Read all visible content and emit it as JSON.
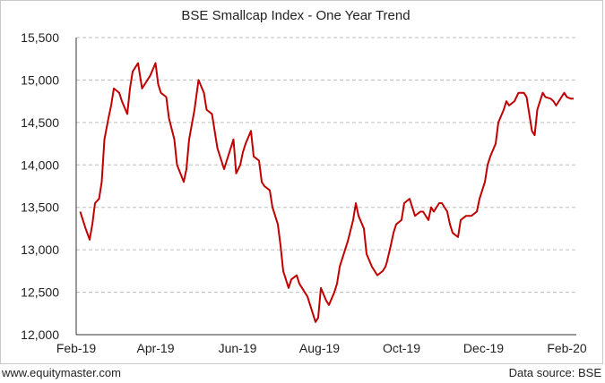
{
  "chart_data": {
    "type": "line",
    "title": "BSE Smallcap Index - One Year Trend",
    "xlabel": "",
    "ylabel": "",
    "x_tick_labels": [
      "Feb-19",
      "Apr-19",
      "Jun-19",
      "Aug-19",
      "Oct-19",
      "Dec-19",
      "Feb-20"
    ],
    "y_tick_labels": [
      "12,000",
      "12,500",
      "13,000",
      "13,500",
      "14,000",
      "14,500",
      "15,000",
      "15,500"
    ],
    "y_ticks": [
      12000,
      12500,
      13000,
      13500,
      14000,
      14500,
      15000,
      15500
    ],
    "ylim": [
      12000,
      15500
    ],
    "grid": true,
    "line_color": "#c00000",
    "series": [
      {
        "x": [
          "2019-02-04",
          "2019-02-06",
          "2019-02-08",
          "2019-02-11",
          "2019-02-13",
          "2019-02-15",
          "2019-02-18",
          "2019-02-20",
          "2019-02-22",
          "2019-02-25",
          "2019-02-27",
          "2019-03-01",
          "2019-03-05",
          "2019-03-07",
          "2019-03-11",
          "2019-03-13",
          "2019-03-15",
          "2019-03-19",
          "2019-03-22",
          "2019-03-26",
          "2019-03-28",
          "2019-04-01",
          "2019-04-03",
          "2019-04-05",
          "2019-04-09",
          "2019-04-11",
          "2019-04-15",
          "2019-04-17",
          "2019-04-22",
          "2019-04-24",
          "2019-04-26",
          "2019-04-30",
          "2019-05-03",
          "2019-05-07",
          "2019-05-09",
          "2019-05-13",
          "2019-05-15",
          "2019-05-17",
          "2019-05-20",
          "2019-05-22",
          "2019-05-24",
          "2019-05-27",
          "2019-05-29",
          "2019-05-31",
          "2019-06-03",
          "2019-06-05",
          "2019-06-07",
          "2019-06-11",
          "2019-06-13",
          "2019-06-17",
          "2019-06-19",
          "2019-06-21",
          "2019-06-25",
          "2019-06-27",
          "2019-07-01",
          "2019-07-03",
          "2019-07-05",
          "2019-07-09",
          "2019-07-11",
          "2019-07-15",
          "2019-07-17",
          "2019-07-19",
          "2019-07-23",
          "2019-07-25",
          "2019-07-29",
          "2019-07-31",
          "2019-08-02",
          "2019-08-06",
          "2019-08-08",
          "2019-08-12",
          "2019-08-14",
          "2019-08-16",
          "2019-08-20",
          "2019-08-22",
          "2019-08-26",
          "2019-08-28",
          "2019-08-30",
          "2019-09-03",
          "2019-09-05",
          "2019-09-09",
          "2019-09-11",
          "2019-09-13",
          "2019-09-17",
          "2019-09-19",
          "2019-09-20",
          "2019-09-23",
          "2019-09-25",
          "2019-09-27",
          "2019-10-01",
          "2019-10-03",
          "2019-10-07",
          "2019-10-09",
          "2019-10-11",
          "2019-10-15",
          "2019-10-17",
          "2019-10-21",
          "2019-10-23",
          "2019-10-25",
          "2019-10-29",
          "2019-10-31",
          "2019-11-04",
          "2019-11-06",
          "2019-11-08",
          "2019-11-12",
          "2019-11-14",
          "2019-11-18",
          "2019-11-20",
          "2019-11-22",
          "2019-11-26",
          "2019-11-28",
          "2019-12-02",
          "2019-12-04",
          "2019-12-06",
          "2019-12-10",
          "2019-12-12",
          "2019-12-16",
          "2019-12-18",
          "2019-12-20",
          "2019-12-24",
          "2019-12-27",
          "2019-12-31",
          "2020-01-02",
          "2020-01-06",
          "2020-01-08",
          "2020-01-10",
          "2020-01-14",
          "2020-01-16",
          "2020-01-20",
          "2020-01-22",
          "2020-01-24",
          "2020-01-28",
          "2020-01-30",
          "2020-02-01",
          "2020-02-04",
          "2020-02-06"
        ],
        "y": [
          13450,
          13350,
          13250,
          13120,
          13300,
          13550,
          13600,
          13800,
          14300,
          14550,
          14700,
          14900,
          14850,
          14750,
          14600,
          14900,
          15100,
          15200,
          14900,
          15000,
          15050,
          15200,
          14950,
          14850,
          14800,
          14550,
          14300,
          14000,
          13800,
          13950,
          14300,
          14650,
          15000,
          14850,
          14650,
          14600,
          14400,
          14200,
          14050,
          13950,
          14050,
          14200,
          14300,
          13900,
          14000,
          14150,
          14250,
          14400,
          14100,
          14050,
          13800,
          13750,
          13700,
          13500,
          13300,
          13050,
          12750,
          12550,
          12650,
          12700,
          12600,
          12550,
          12450,
          12350,
          12150,
          12200,
          12550,
          12400,
          12350,
          12500,
          12600,
          12800,
          13000,
          13100,
          13350,
          13550,
          13400,
          13250,
          12950,
          12800,
          12750,
          12700,
          12750,
          12800,
          12850,
          13050,
          13200,
          13300,
          13350,
          13550,
          13600,
          13500,
          13400,
          13450,
          13450,
          13350,
          13500,
          13450,
          13550,
          13550,
          13450,
          13300,
          13200,
          13150,
          13350,
          13400,
          13400,
          13400,
          13450,
          13600,
          13800,
          14000,
          14100,
          14250,
          14500,
          14650,
          14750,
          14700,
          14750,
          14850,
          14850,
          14800,
          14400,
          14350,
          14650,
          14850,
          14800,
          14780,
          14750,
          14700,
          14800,
          14850,
          14800,
          14780,
          14780
        ]
      }
    ]
  },
  "footer": {
    "left": "www.equitymaster.com",
    "right": "Data source: BSE"
  }
}
